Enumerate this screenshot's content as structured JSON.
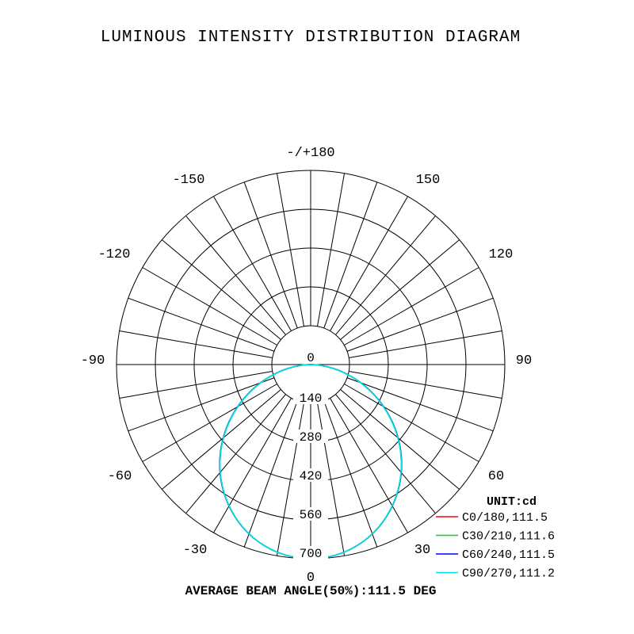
{
  "chart_data": {
    "type": "polar",
    "title": "LUMINOUS INTENSITY DISTRIBUTION DIAGRAM",
    "angle_labels": [
      {
        "deg": 180,
        "text": "-/+180"
      },
      {
        "deg": 150,
        "text": "150"
      },
      {
        "deg": -150,
        "text": "-150"
      },
      {
        "deg": 120,
        "text": "120"
      },
      {
        "deg": -120,
        "text": "-120"
      },
      {
        "deg": 90,
        "text": "90"
      },
      {
        "deg": -90,
        "text": "-90"
      },
      {
        "deg": 60,
        "text": "60"
      },
      {
        "deg": -60,
        "text": "-60"
      },
      {
        "deg": 30,
        "text": "30"
      },
      {
        "deg": -30,
        "text": "-30"
      },
      {
        "deg": 0,
        "text": "0"
      }
    ],
    "radial_ticks": [
      "0",
      "140",
      "280",
      "420",
      "560",
      "700"
    ],
    "radial_values": [
      0,
      140,
      280,
      420,
      560,
      700
    ],
    "r_max": 700,
    "unit_label": "UNIT:cd",
    "angle_step": 10,
    "series": [
      {
        "name": "C0/180,111.5",
        "color": "#ff0000",
        "beam": 111.5,
        "peak": 700
      },
      {
        "name": "C30/210,111.6",
        "color": "#00e000",
        "beam": 111.6,
        "peak": 700
      },
      {
        "name": "C60/240,111.5",
        "color": "#0000ff",
        "beam": 111.5,
        "peak": 700
      },
      {
        "name": "C90/270,111.2",
        "color": "#00e5e5",
        "beam": 111.2,
        "peak": 700
      }
    ],
    "footer": "AVERAGE BEAM ANGLE(50%):111.5 DEG"
  }
}
